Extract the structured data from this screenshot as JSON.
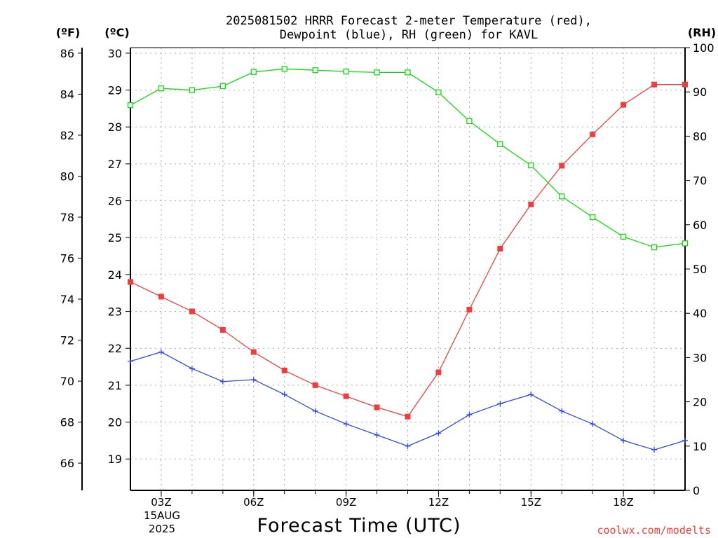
{
  "title": {
    "line1": "2025081502 HRRR Forecast 2-meter Temperature (red),",
    "line2": "Dewpoint (blue), RH (green) for KAVL"
  },
  "axis_units": {
    "fahrenheit": "(ºF)",
    "celsius": "(ºC)",
    "rh": "(RH)"
  },
  "xlabel": "Forecast Time (UTC)",
  "date_label": {
    "line1": "15AUG",
    "line2": "2025"
  },
  "credit": "coolwx.com/modelts",
  "colors": {
    "temperature": "#f03c3c",
    "dewpoint": "#2f47e8",
    "rh": "#12d812",
    "grid": "#aaaaaa"
  },
  "chart_data": {
    "type": "line",
    "x": [
      2,
      3,
      4,
      5,
      6,
      7,
      8,
      9,
      10,
      11,
      12,
      13,
      14,
      15,
      16,
      17,
      18,
      19,
      20
    ],
    "x_unit": "hour UTC, 15 Aug 2025",
    "xlim": [
      2,
      20
    ],
    "xticks": [
      {
        "x": 3,
        "label": "03Z"
      },
      {
        "x": 6,
        "label": "06Z"
      },
      {
        "x": 9,
        "label": "09Z"
      },
      {
        "x": 12,
        "label": "12Z"
      },
      {
        "x": 15,
        "label": "15Z"
      },
      {
        "x": 18,
        "label": "18Z"
      }
    ],
    "celsius_axis": {
      "min": 18.15,
      "max": 30.15,
      "ticks": [
        "19",
        "20",
        "21",
        "22",
        "23",
        "24",
        "25",
        "26",
        "27",
        "28",
        "29",
        "30"
      ]
    },
    "fahrenheit_axis": {
      "ticks": [
        "66",
        "68",
        "70",
        "72",
        "74",
        "76",
        "78",
        "80",
        "82",
        "84",
        "86"
      ]
    },
    "rh_axis": {
      "min": 0,
      "max": 100,
      "ticks": [
        "0",
        "10",
        "20",
        "30",
        "40",
        "50",
        "60",
        "70",
        "80",
        "90",
        "100"
      ]
    },
    "grid": true,
    "series": [
      {
        "name": "Temperature",
        "axis": "celsius",
        "marker": "filled-square",
        "values": [
          23.8,
          23.4,
          23.0,
          22.5,
          21.9,
          21.4,
          21.0,
          20.7,
          20.4,
          20.15,
          21.35,
          23.05,
          24.7,
          25.9,
          26.95,
          27.8,
          28.6,
          29.15,
          29.15
        ]
      },
      {
        "name": "Dewpoint",
        "axis": "celsius",
        "marker": "plus",
        "values": [
          21.65,
          21.9,
          21.45,
          21.1,
          21.15,
          20.75,
          20.3,
          19.95,
          19.65,
          19.35,
          19.7,
          20.2,
          20.5,
          20.75,
          20.3,
          19.95,
          19.5,
          19.25,
          19.5
        ]
      },
      {
        "name": "RH",
        "axis": "rh",
        "marker": "open-square",
        "values": [
          87,
          90.8,
          90.4,
          91.3,
          94.5,
          95.2,
          94.9,
          94.6,
          94.4,
          94.4,
          89.9,
          83.4,
          78.2,
          73.4,
          66.4,
          61.7,
          57.3,
          54.9,
          55.8
        ]
      }
    ]
  }
}
